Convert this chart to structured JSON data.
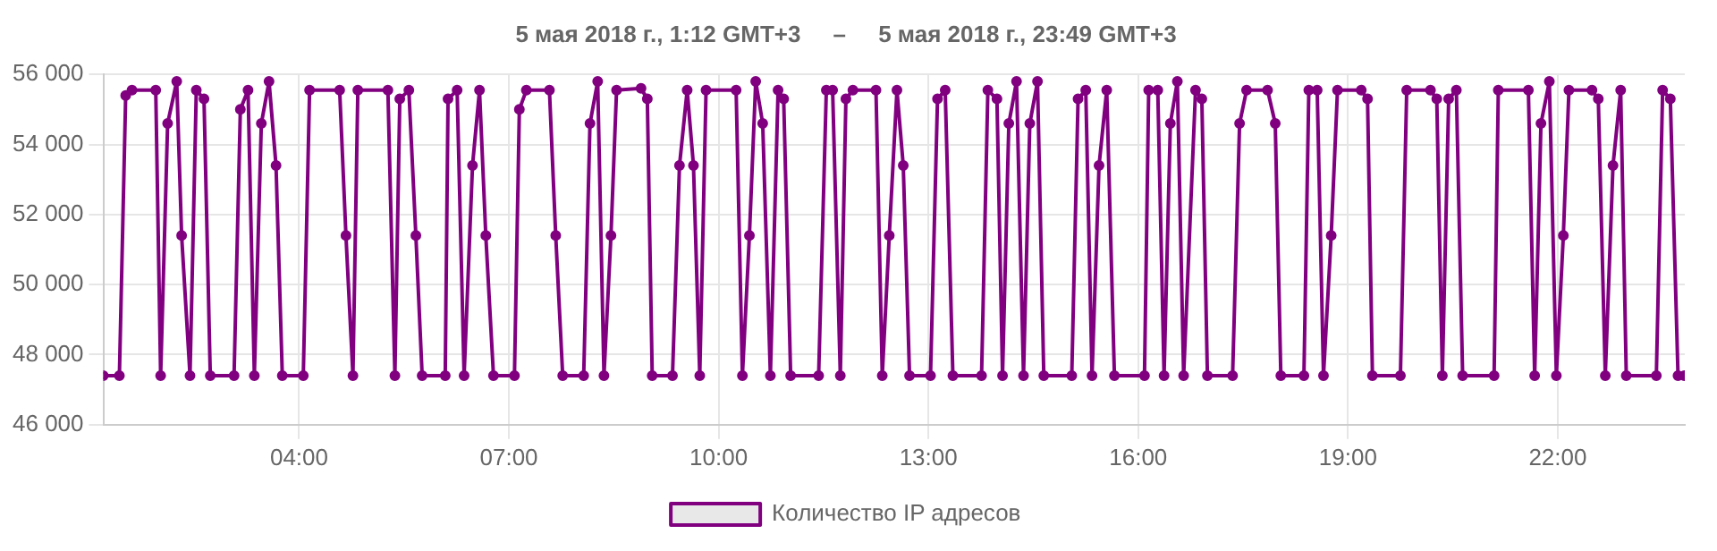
{
  "chart_data": {
    "type": "line",
    "title": "5 мая 2018 г., 1:12 GMT+3     –     5 мая 2018 г., 23:49 GMT+3",
    "xlim": [
      1.2,
      23.817
    ],
    "xticks": [
      {
        "value": 4,
        "label": "04:00"
      },
      {
        "value": 7,
        "label": "07:00"
      },
      {
        "value": 10,
        "label": "10:00"
      },
      {
        "value": 13,
        "label": "13:00"
      },
      {
        "value": 16,
        "label": "16:00"
      },
      {
        "value": 19,
        "label": "19:00"
      },
      {
        "value": 22,
        "label": "22:00"
      }
    ],
    "ylim": [
      46000,
      56000
    ],
    "yticks": [
      {
        "value": 46000,
        "label": "46 000"
      },
      {
        "value": 48000,
        "label": "48 000"
      },
      {
        "value": 50000,
        "label": "50 000"
      },
      {
        "value": 52000,
        "label": "52 000"
      },
      {
        "value": 54000,
        "label": "54 000"
      },
      {
        "value": 56000,
        "label": "56 000"
      }
    ],
    "grid": true,
    "legend": "bottom",
    "marker": "circle",
    "line_style": "solid",
    "x": [
      1.2,
      1.43,
      1.52,
      1.61,
      1.95,
      2.02,
      2.12,
      2.25,
      2.32,
      2.44,
      2.53,
      2.64,
      2.73,
      3.07,
      3.16,
      3.27,
      3.36,
      3.46,
      3.57,
      3.67,
      3.76,
      4.06,
      4.15,
      4.58,
      4.67,
      4.77,
      4.84,
      5.27,
      5.37,
      5.44,
      5.57,
      5.67,
      5.76,
      6.09,
      6.13,
      6.26,
      6.36,
      6.48,
      6.58,
      6.67,
      6.78,
      7.08,
      7.15,
      7.25,
      7.58,
      7.67,
      7.77,
      8.07,
      8.16,
      8.27,
      8.36,
      8.46,
      8.54,
      8.89,
      8.98,
      9.05,
      9.34,
      9.44,
      9.55,
      9.64,
      9.73,
      9.82,
      10.25,
      10.34,
      10.44,
      10.53,
      10.63,
      10.74,
      10.85,
      10.93,
      11.03,
      11.43,
      11.54,
      11.63,
      11.74,
      11.82,
      11.92,
      12.25,
      12.34,
      12.44,
      12.55,
      12.64,
      12.73,
      13.03,
      13.13,
      13.24,
      13.35,
      13.76,
      13.85,
      13.98,
      14.06,
      14.15,
      14.26,
      14.36,
      14.45,
      14.56,
      14.65,
      15.05,
      15.14,
      15.25,
      15.34,
      15.44,
      15.55,
      15.66,
      16.09,
      16.15,
      16.28,
      16.37,
      16.46,
      16.56,
      16.65,
      16.82,
      16.91,
      16.99,
      17.35,
      17.45,
      17.55,
      17.85,
      17.96,
      18.04,
      18.37,
      18.44,
      18.56,
      18.65,
      18.76,
      18.85,
      19.19,
      19.28,
      19.35,
      19.75,
      19.84,
      20.18,
      20.27,
      20.35,
      20.44,
      20.55,
      20.64,
      21.09,
      21.15,
      21.58,
      21.67,
      21.76,
      21.88,
      21.98,
      22.08,
      22.16,
      22.49,
      22.58,
      22.68,
      22.79,
      22.9,
      22.98,
      23.41,
      23.5,
      23.61,
      23.72,
      23.81
    ],
    "series": [
      {
        "name": "Количество IP адресов",
        "color": "#800080",
        "values": [
          47400,
          47400,
          55400,
          55550,
          55550,
          47400,
          54600,
          55800,
          51400,
          47400,
          55550,
          55300,
          47400,
          47400,
          55000,
          55550,
          47400,
          54600,
          55800,
          53400,
          47400,
          47400,
          55550,
          55550,
          51400,
          47400,
          55550,
          55550,
          47400,
          55300,
          55550,
          51400,
          47400,
          47400,
          55300,
          55550,
          47400,
          53400,
          55550,
          51400,
          47400,
          47400,
          55000,
          55550,
          55550,
          51400,
          47400,
          47400,
          54600,
          55800,
          47400,
          51400,
          55550,
          55600,
          55300,
          47400,
          47400,
          53400,
          55550,
          53400,
          47400,
          55550,
          55550,
          47400,
          51400,
          55800,
          54600,
          47400,
          55550,
          55300,
          47400,
          47400,
          55550,
          55550,
          47400,
          55300,
          55550,
          55550,
          47400,
          51400,
          55550,
          53400,
          47400,
          47400,
          55300,
          55550,
          47400,
          47400,
          55550,
          55300,
          47400,
          54600,
          55800,
          47400,
          54600,
          55800,
          47400,
          47400,
          55300,
          55550,
          47400,
          53400,
          55550,
          47400,
          47400,
          55550,
          55550,
          47400,
          54600,
          55800,
          47400,
          55550,
          55300,
          47400,
          47400,
          54600,
          55550,
          55550,
          54600,
          47400,
          47400,
          55550,
          55550,
          47400,
          51400,
          55550,
          55550,
          55300,
          47400,
          47400,
          55550,
          55550,
          55300,
          47400,
          55300,
          55550,
          47400,
          47400,
          55550,
          55550,
          47400,
          54600,
          55800,
          47400,
          51400,
          55550,
          55550,
          55300,
          47400,
          53400,
          55550,
          47400,
          47400,
          55550,
          55300,
          47400,
          47400
        ]
      }
    ]
  }
}
